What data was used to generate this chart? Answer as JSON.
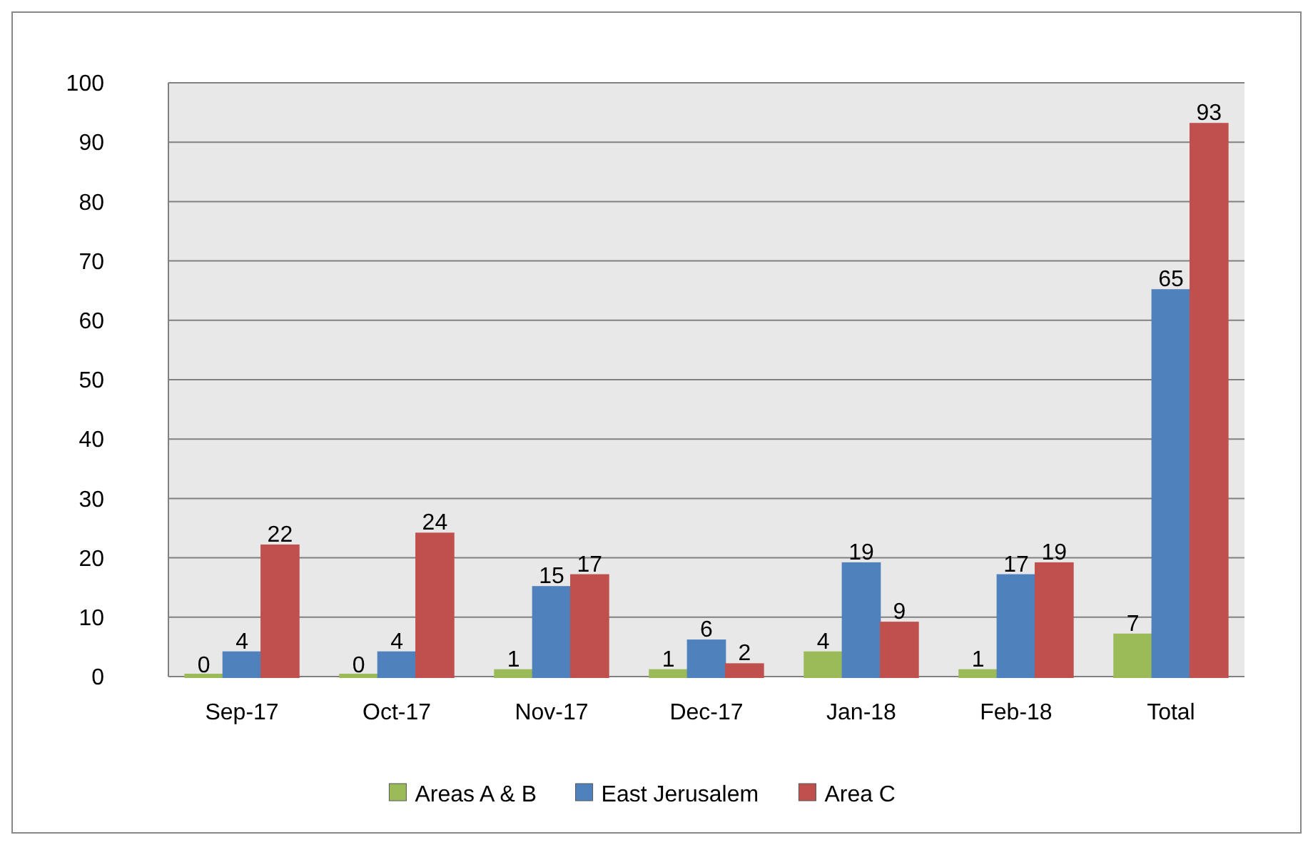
{
  "chart_data": {
    "type": "bar",
    "categories": [
      "Sep-17",
      "Oct-17",
      "Nov-17",
      "Dec-17",
      "Jan-18",
      "Feb-18",
      "Total"
    ],
    "series": [
      {
        "name": "Areas A & B",
        "color": "#9bbb59",
        "values": [
          0,
          0,
          1,
          1,
          4,
          1,
          7
        ]
      },
      {
        "name": "East Jerusalem",
        "color": "#4f81bd",
        "values": [
          4,
          4,
          15,
          6,
          19,
          17,
          65
        ]
      },
      {
        "name": "Area C",
        "color": "#c0504d",
        "values": [
          22,
          24,
          17,
          2,
          9,
          19,
          93
        ]
      }
    ],
    "ylim": [
      0,
      100
    ],
    "yticks": [
      0,
      10,
      20,
      30,
      40,
      50,
      60,
      70,
      80,
      90,
      100
    ],
    "grid": "y",
    "legend": "bottom",
    "data_labels": true
  }
}
